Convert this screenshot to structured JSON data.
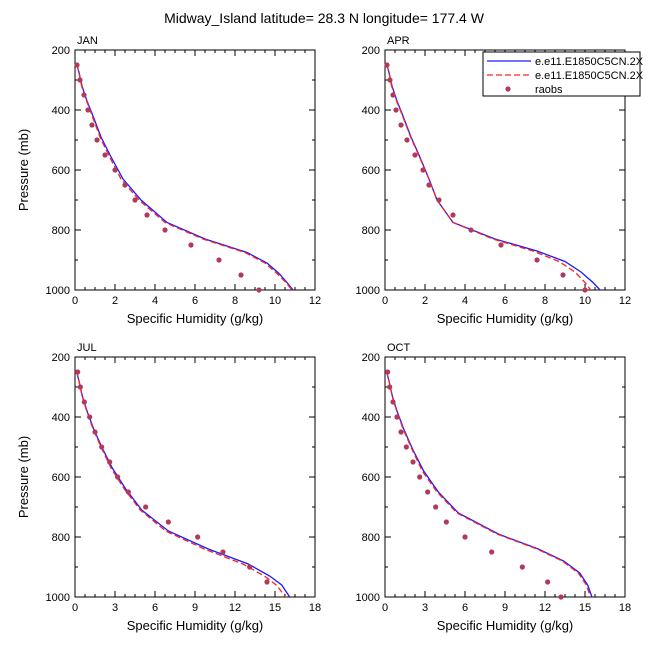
{
  "figure": {
    "title": "Midway_Island  latitude= 28.3 N longitude= 177.4 W"
  },
  "legend": {
    "placement": "top-right of APR panel",
    "entries": [
      {
        "label": "e.e11.E1850C5CN.2X",
        "color": "#1a1aff",
        "style": "solid"
      },
      {
        "label": "e.e11.E1850C5CN.2X",
        "color": "#ff2020",
        "style": "dashed"
      },
      {
        "label": "raobs",
        "color": "#b03a5a",
        "style": "marker"
      }
    ]
  },
  "chart_data": [
    {
      "type": "line",
      "panel": "JAN",
      "xlabel": "Specific Humidity (g/kg)",
      "ylabel": "Pressure (mb)",
      "xlim": [
        0,
        12
      ],
      "ylim": [
        200,
        1000
      ],
      "y_reversed": true,
      "xticks": [
        0,
        2,
        4,
        6,
        8,
        10,
        12
      ],
      "yticks": [
        200,
        400,
        600,
        800,
        1000
      ],
      "series": [
        {
          "color": "#1a1aff",
          "style": "solid",
          "x": [
            0.1,
            0.2,
            0.35,
            0.6,
            0.9,
            1.3,
            1.75,
            2.4,
            3.3,
            4.6,
            6.5,
            8.6,
            9.6,
            10.2,
            10.6,
            10.9
          ],
          "y": [
            250,
            275,
            320,
            370,
            420,
            490,
            550,
            630,
            700,
            775,
            830,
            875,
            910,
            945,
            975,
            1000
          ]
        },
        {
          "color": "#ff2020",
          "style": "dashed",
          "x": [
            0.1,
            0.2,
            0.33,
            0.58,
            0.86,
            1.25,
            1.68,
            2.3,
            3.2,
            4.5,
            6.4,
            8.5,
            9.5,
            10.1,
            10.55,
            10.85
          ],
          "y": [
            250,
            275,
            320,
            370,
            420,
            490,
            550,
            630,
            700,
            775,
            830,
            875,
            910,
            945,
            975,
            1000
          ]
        }
      ],
      "points": {
        "x": [
          0.1,
          0.25,
          0.45,
          0.65,
          0.85,
          1.1,
          1.5,
          2.0,
          2.5,
          3.0,
          3.6,
          4.5,
          5.8,
          7.2,
          8.3,
          9.2
        ],
        "y": [
          250,
          300,
          350,
          400,
          450,
          500,
          550,
          600,
          650,
          700,
          750,
          800,
          850,
          900,
          950,
          1000
        ]
      }
    },
    {
      "type": "line",
      "panel": "APR",
      "xlabel": "Specific Humidity (g/kg)",
      "ylabel": "",
      "xlim": [
        0,
        12
      ],
      "ylim": [
        200,
        1000
      ],
      "y_reversed": true,
      "xticks": [
        0,
        2,
        4,
        6,
        8,
        10,
        12
      ],
      "yticks": [
        200,
        400,
        600,
        800,
        1000
      ],
      "series": [
        {
          "color": "#1a1aff",
          "style": "solid",
          "x": [
            0.1,
            0.2,
            0.35,
            0.6,
            0.9,
            1.3,
            1.7,
            2.2,
            2.6,
            3.4,
            5.5,
            7.6,
            9.0,
            9.8,
            10.4,
            10.9
          ],
          "y": [
            250,
            275,
            320,
            370,
            420,
            490,
            550,
            630,
            700,
            775,
            830,
            870,
            905,
            940,
            975,
            1010
          ]
        },
        {
          "color": "#ff2020",
          "style": "dashed",
          "x": [
            0.1,
            0.2,
            0.33,
            0.58,
            0.88,
            1.28,
            1.68,
            2.2,
            2.6,
            3.4,
            5.4,
            7.4,
            8.7,
            9.5,
            10.0,
            10.4
          ],
          "y": [
            250,
            275,
            320,
            370,
            420,
            490,
            550,
            630,
            700,
            775,
            830,
            870,
            905,
            940,
            975,
            1010
          ]
        }
      ],
      "points": {
        "x": [
          0.1,
          0.25,
          0.4,
          0.55,
          0.8,
          1.1,
          1.5,
          1.9,
          2.2,
          2.7,
          3.4,
          4.3,
          5.8,
          7.6,
          8.9,
          10.0
        ],
        "y": [
          250,
          300,
          350,
          400,
          450,
          500,
          550,
          600,
          650,
          700,
          750,
          800,
          850,
          900,
          950,
          1000
        ]
      }
    },
    {
      "type": "line",
      "panel": "JUL",
      "xlabel": "Specific Humidity (g/kg)",
      "ylabel": "Pressure (mb)",
      "xlim": [
        0,
        18
      ],
      "ylim": [
        200,
        1000
      ],
      "y_reversed": true,
      "xticks": [
        0,
        3,
        6,
        9,
        12,
        15,
        18
      ],
      "yticks": [
        200,
        400,
        600,
        800,
        1000
      ],
      "series": [
        {
          "color": "#1a1aff",
          "style": "solid",
          "x": [
            0.1,
            0.3,
            0.55,
            0.9,
            1.4,
            2.0,
            2.8,
            3.8,
            5.0,
            7.0,
            10.0,
            13.0,
            14.6,
            15.5,
            16.1
          ],
          "y": [
            245,
            280,
            330,
            380,
            440,
            500,
            570,
            640,
            710,
            780,
            840,
            890,
            930,
            960,
            1000
          ]
        },
        {
          "color": "#ff2020",
          "style": "dashed",
          "x": [
            0.1,
            0.3,
            0.53,
            0.88,
            1.36,
            1.95,
            2.7,
            3.7,
            4.9,
            6.8,
            9.7,
            12.6,
            14.2,
            15.1,
            15.8
          ],
          "y": [
            245,
            280,
            330,
            380,
            440,
            500,
            570,
            640,
            710,
            780,
            840,
            890,
            930,
            960,
            1000
          ]
        }
      ],
      "points": {
        "x": [
          0.2,
          0.4,
          0.7,
          1.1,
          1.5,
          2.0,
          2.6,
          3.2,
          4.0,
          5.3,
          7.0,
          9.2,
          11.1,
          13.1,
          14.4
        ],
        "y": [
          250,
          300,
          350,
          400,
          450,
          500,
          550,
          600,
          650,
          700,
          750,
          800,
          850,
          900,
          950
        ]
      }
    },
    {
      "type": "line",
      "panel": "OCT",
      "xlabel": "Specific Humidity (g/kg)",
      "ylabel": "",
      "xlim": [
        0,
        18
      ],
      "ylim": [
        200,
        1000
      ],
      "y_reversed": true,
      "xticks": [
        0,
        3,
        6,
        9,
        12,
        15,
        18
      ],
      "yticks": [
        200,
        400,
        600,
        800,
        1000
      ],
      "series": [
        {
          "color": "#1a1aff",
          "style": "solid",
          "x": [
            0.1,
            0.3,
            0.55,
            0.9,
            1.4,
            2.1,
            2.9,
            4.0,
            5.5,
            8.5,
            11.5,
            13.4,
            14.6,
            15.2,
            15.6
          ],
          "y": [
            245,
            280,
            330,
            380,
            440,
            510,
            580,
            650,
            720,
            790,
            840,
            880,
            920,
            960,
            1010
          ]
        },
        {
          "color": "#ff2020",
          "style": "dashed",
          "x": [
            0.1,
            0.3,
            0.53,
            0.88,
            1.36,
            2.05,
            2.8,
            3.9,
            5.4,
            8.4,
            11.4,
            13.3,
            14.5,
            15.1,
            15.5
          ],
          "y": [
            245,
            280,
            330,
            380,
            440,
            510,
            580,
            650,
            720,
            790,
            840,
            880,
            920,
            960,
            1010
          ]
        }
      ],
      "points": {
        "x": [
          0.2,
          0.35,
          0.6,
          0.9,
          1.2,
          1.6,
          2.1,
          2.6,
          3.2,
          3.8,
          4.6,
          6.0,
          8.0,
          10.3,
          12.2,
          13.2
        ],
        "y": [
          250,
          300,
          350,
          400,
          450,
          500,
          550,
          600,
          650,
          700,
          750,
          800,
          850,
          900,
          950,
          1000
        ]
      }
    }
  ]
}
